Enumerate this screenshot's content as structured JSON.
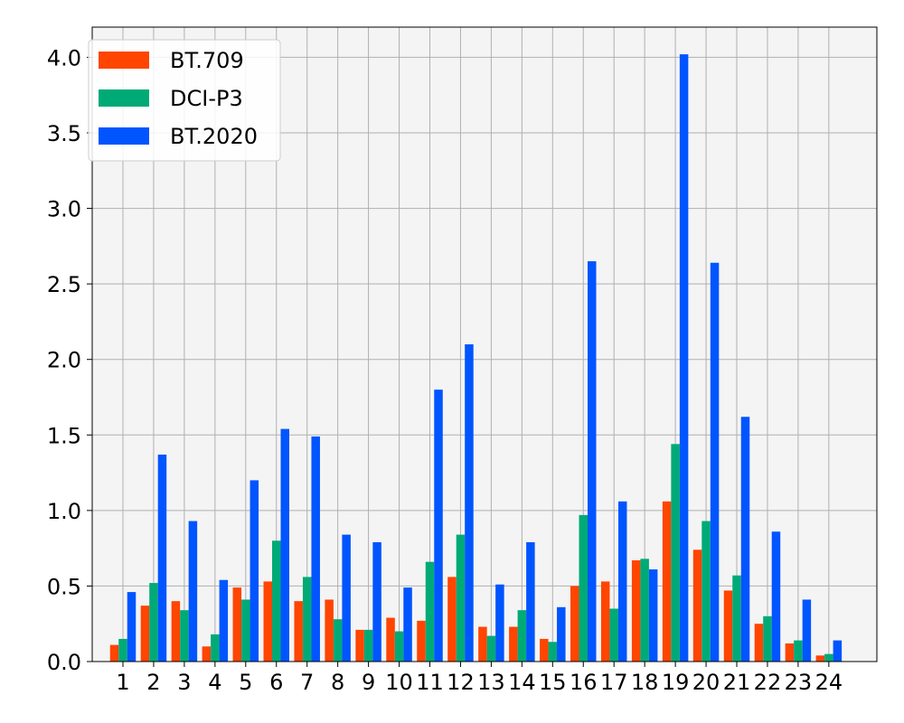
{
  "chart_data": {
    "type": "bar",
    "title": "",
    "xlabel": "",
    "ylabel": "",
    "categories": [
      "1",
      "2",
      "3",
      "4",
      "5",
      "6",
      "7",
      "8",
      "9",
      "10",
      "11",
      "12",
      "13",
      "14",
      "15",
      "16",
      "17",
      "18",
      "19",
      "20",
      "21",
      "22",
      "23",
      "24"
    ],
    "series": [
      {
        "name": "BT.709",
        "color": "#ff4500",
        "values": [
          0.11,
          0.37,
          0.4,
          0.1,
          0.49,
          0.53,
          0.4,
          0.41,
          0.21,
          0.29,
          0.27,
          0.56,
          0.23,
          0.23,
          0.15,
          0.5,
          0.53,
          0.67,
          1.06,
          0.74,
          0.47,
          0.25,
          0.12,
          0.04
        ]
      },
      {
        "name": "DCI-P3",
        "color": "#00aa77",
        "values": [
          0.15,
          0.52,
          0.34,
          0.18,
          0.41,
          0.8,
          0.56,
          0.28,
          0.21,
          0.2,
          0.66,
          0.84,
          0.17,
          0.34,
          0.13,
          0.97,
          0.35,
          0.68,
          1.44,
          0.93,
          0.57,
          0.3,
          0.14,
          0.05
        ]
      },
      {
        "name": "BT.2020",
        "color": "#0055ff",
        "values": [
          0.46,
          1.37,
          0.93,
          0.54,
          1.2,
          1.54,
          1.49,
          0.84,
          0.79,
          0.49,
          1.8,
          2.1,
          0.51,
          0.79,
          0.36,
          2.65,
          1.06,
          0.61,
          4.02,
          2.64,
          1.62,
          0.86,
          0.41,
          0.14
        ]
      }
    ],
    "ylim": [
      0,
      4.2
    ],
    "yticks": [
      "0.0",
      "0.5",
      "1.0",
      "1.5",
      "2.0",
      "2.5",
      "3.0",
      "3.5",
      "4.0"
    ],
    "grid": true,
    "legend": "top-left",
    "plot_background": "#f4f4f4"
  }
}
